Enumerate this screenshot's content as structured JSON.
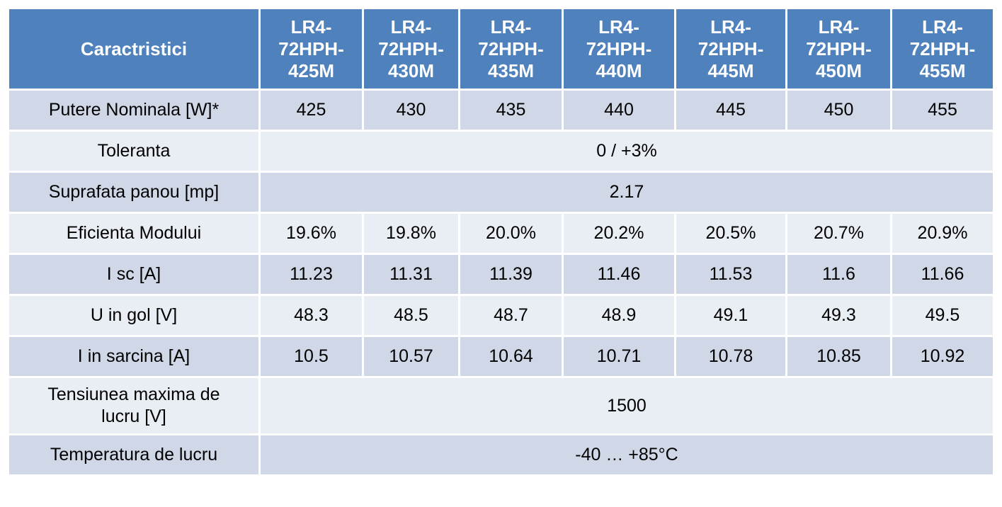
{
  "table": {
    "header": [
      "Caractristici",
      "LR4-72HPH-425M",
      "LR4-72HPH-430M",
      "LR4-72HPH-435M",
      "LR4-72HPH-440M",
      "LR4-72HPH-445M",
      "LR4-72HPH-450M",
      "LR4-72HPH-455M"
    ],
    "rows": [
      {
        "label": "Putere Nominala [W]*",
        "values": [
          "425",
          "430",
          "435",
          "440",
          "445",
          "450",
          "455"
        ]
      },
      {
        "label": "Toleranta",
        "value": "0 / +3%"
      },
      {
        "label": "Suprafata panou [mp]",
        "value": "2.17"
      },
      {
        "label": "Eficienta Modului",
        "values": [
          "19.6%",
          "19.8%",
          "20.0%",
          "20.2%",
          "20.5%",
          "20.7%",
          "20.9%"
        ]
      },
      {
        "label": "I sc [A]",
        "values": [
          "11.23",
          "11.31",
          "11.39",
          "11.46",
          "11.53",
          "11.6",
          "11.66"
        ]
      },
      {
        "label": "U in gol [V]",
        "values": [
          "48.3",
          "48.5",
          "48.7",
          "48.9",
          "49.1",
          "49.3",
          "49.5"
        ]
      },
      {
        "label": "I in sarcina [A]",
        "values": [
          "10.5",
          "10.57",
          "10.64",
          "10.71",
          "10.78",
          "10.85",
          "10.92"
        ]
      },
      {
        "label": "Tensiunea maxima de lucru [V]",
        "value": "1500"
      },
      {
        "label": "Temperatura de lucru",
        "value": "-40 … +85°C"
      }
    ]
  }
}
